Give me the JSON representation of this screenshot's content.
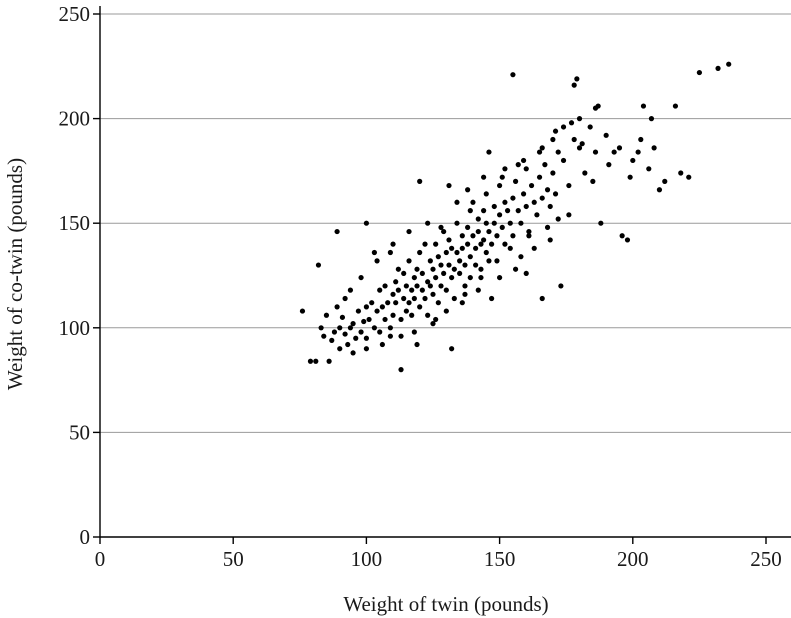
{
  "chart_data": {
    "type": "scatter",
    "title": "",
    "xlabel": "Weight of twin (pounds)",
    "ylabel": "Weight of co-twin (pounds)",
    "xlim": [
      0,
      250
    ],
    "ylim": [
      0,
      250
    ],
    "xticks": [
      "0",
      "50",
      "100",
      "150",
      "200",
      "250"
    ],
    "yticks": [
      "0",
      "50",
      "100",
      "150",
      "200",
      "250"
    ],
    "grid": "horizontal",
    "marker_color": "#000000",
    "points": [
      [
        76,
        108
      ],
      [
        79,
        84
      ],
      [
        81,
        84
      ],
      [
        82,
        130
      ],
      [
        83,
        100
      ],
      [
        84,
        96
      ],
      [
        86,
        84
      ],
      [
        87,
        94
      ],
      [
        88,
        98
      ],
      [
        89,
        146
      ],
      [
        90,
        90
      ],
      [
        90,
        100
      ],
      [
        91,
        105
      ],
      [
        92,
        114
      ],
      [
        92,
        97
      ],
      [
        93,
        92
      ],
      [
        94,
        100
      ],
      [
        95,
        102
      ],
      [
        96,
        95
      ],
      [
        97,
        108
      ],
      [
        98,
        98
      ],
      [
        99,
        103
      ],
      [
        100,
        150
      ],
      [
        100,
        110
      ],
      [
        100,
        95
      ],
      [
        101,
        104
      ],
      [
        102,
        112
      ],
      [
        103,
        100
      ],
      [
        104,
        108
      ],
      [
        105,
        118
      ],
      [
        105,
        98
      ],
      [
        106,
        110
      ],
      [
        107,
        120
      ],
      [
        107,
        104
      ],
      [
        108,
        112
      ],
      [
        109,
        136
      ],
      [
        109,
        100
      ],
      [
        110,
        116
      ],
      [
        110,
        106
      ],
      [
        111,
        122
      ],
      [
        111,
        112
      ],
      [
        112,
        128
      ],
      [
        112,
        118
      ],
      [
        113,
        104
      ],
      [
        113,
        80
      ],
      [
        114,
        114
      ],
      [
        114,
        126
      ],
      [
        115,
        120
      ],
      [
        115,
        108
      ],
      [
        116,
        112
      ],
      [
        116,
        132
      ],
      [
        117,
        118
      ],
      [
        117,
        106
      ],
      [
        118,
        124
      ],
      [
        118,
        114
      ],
      [
        119,
        128
      ],
      [
        119,
        120
      ],
      [
        120,
        110
      ],
      [
        120,
        136
      ],
      [
        121,
        118
      ],
      [
        121,
        126
      ],
      [
        122,
        140
      ],
      [
        122,
        114
      ],
      [
        123,
        122
      ],
      [
        123,
        106
      ],
      [
        124,
        132
      ],
      [
        124,
        120
      ],
      [
        125,
        128
      ],
      [
        125,
        116
      ],
      [
        126,
        140
      ],
      [
        126,
        124
      ],
      [
        127,
        134
      ],
      [
        127,
        112
      ],
      [
        128,
        130
      ],
      [
        128,
        120
      ],
      [
        129,
        146
      ],
      [
        129,
        126
      ],
      [
        130,
        136
      ],
      [
        130,
        118
      ],
      [
        131,
        142
      ],
      [
        131,
        130
      ],
      [
        132,
        124
      ],
      [
        132,
        138
      ],
      [
        133,
        128
      ],
      [
        133,
        114
      ],
      [
        134,
        150
      ],
      [
        134,
        136
      ],
      [
        135,
        132
      ],
      [
        135,
        126
      ],
      [
        136,
        144
      ],
      [
        136,
        138
      ],
      [
        137,
        130
      ],
      [
        137,
        120
      ],
      [
        138,
        148
      ],
      [
        138,
        140
      ],
      [
        139,
        134
      ],
      [
        139,
        124
      ],
      [
        140,
        160
      ],
      [
        140,
        144
      ],
      [
        141,
        138
      ],
      [
        141,
        130
      ],
      [
        142,
        152
      ],
      [
        142,
        146
      ],
      [
        143,
        140
      ],
      [
        143,
        128
      ],
      [
        144,
        156
      ],
      [
        144,
        142
      ],
      [
        145,
        136
      ],
      [
        145,
        150
      ],
      [
        146,
        146
      ],
      [
        146,
        132
      ],
      [
        147,
        140
      ],
      [
        148,
        158
      ],
      [
        148,
        150
      ],
      [
        149,
        144
      ],
      [
        150,
        168
      ],
      [
        150,
        154
      ],
      [
        151,
        148
      ],
      [
        152,
        160
      ],
      [
        152,
        140
      ],
      [
        153,
        156
      ],
      [
        154,
        150
      ],
      [
        155,
        162
      ],
      [
        155,
        144
      ],
      [
        156,
        170
      ],
      [
        157,
        156
      ],
      [
        158,
        150
      ],
      [
        159,
        164
      ],
      [
        160,
        176
      ],
      [
        160,
        158
      ],
      [
        161,
        146
      ],
      [
        162,
        168
      ],
      [
        163,
        160
      ],
      [
        164,
        154
      ],
      [
        165,
        172
      ],
      [
        166,
        162
      ],
      [
        167,
        178
      ],
      [
        168,
        166
      ],
      [
        169,
        158
      ],
      [
        170,
        174
      ],
      [
        171,
        164
      ],
      [
        172,
        184
      ],
      [
        174,
        180
      ],
      [
        176,
        168
      ],
      [
        178,
        190
      ],
      [
        180,
        186
      ],
      [
        182,
        174
      ],
      [
        184,
        196
      ],
      [
        186,
        184
      ],
      [
        188,
        150
      ],
      [
        190,
        192
      ],
      [
        195,
        186
      ],
      [
        196,
        144
      ],
      [
        198,
        142
      ],
      [
        200,
        180
      ],
      [
        202,
        184
      ],
      [
        204,
        206
      ],
      [
        206,
        176
      ],
      [
        208,
        186
      ],
      [
        210,
        166
      ],
      [
        212,
        170
      ],
      [
        216,
        206
      ],
      [
        218,
        174
      ],
      [
        221,
        172
      ],
      [
        225,
        222
      ],
      [
        232,
        224
      ],
      [
        236,
        226
      ],
      [
        155,
        221
      ],
      [
        179,
        219
      ],
      [
        186,
        205
      ],
      [
        174,
        196
      ],
      [
        146,
        184
      ],
      [
        131,
        168
      ],
      [
        120,
        170
      ],
      [
        103,
        136
      ],
      [
        109,
        96
      ],
      [
        119,
        92
      ],
      [
        125,
        102
      ],
      [
        132,
        90
      ],
      [
        137,
        116
      ],
      [
        147,
        114
      ],
      [
        160,
        126
      ],
      [
        166,
        114
      ],
      [
        173,
        120
      ],
      [
        178,
        216
      ],
      [
        180,
        200
      ],
      [
        170,
        190
      ],
      [
        165,
        184
      ],
      [
        157,
        178
      ],
      [
        151,
        172
      ],
      [
        145,
        164
      ],
      [
        139,
        156
      ],
      [
        134,
        160
      ],
      [
        128,
        148
      ],
      [
        123,
        150
      ],
      [
        116,
        146
      ],
      [
        110,
        140
      ],
      [
        104,
        132
      ],
      [
        98,
        124
      ],
      [
        94,
        118
      ],
      [
        89,
        110
      ],
      [
        85,
        106
      ],
      [
        143,
        124
      ],
      [
        149,
        132
      ],
      [
        154,
        138
      ],
      [
        161,
        144
      ],
      [
        158,
        134
      ],
      [
        163,
        138
      ],
      [
        168,
        148
      ],
      [
        172,
        152
      ],
      [
        176,
        154
      ],
      [
        169,
        142
      ],
      [
        156,
        128
      ],
      [
        150,
        124
      ],
      [
        142,
        118
      ],
      [
        136,
        112
      ],
      [
        130,
        108
      ],
      [
        126,
        104
      ],
      [
        118,
        98
      ],
      [
        113,
        96
      ],
      [
        106,
        92
      ],
      [
        100,
        90
      ],
      [
        95,
        88
      ],
      [
        138,
        166
      ],
      [
        144,
        172
      ],
      [
        152,
        176
      ],
      [
        159,
        180
      ],
      [
        166,
        186
      ],
      [
        171,
        194
      ],
      [
        177,
        198
      ],
      [
        181,
        188
      ],
      [
        187,
        206
      ],
      [
        193,
        184
      ],
      [
        203,
        190
      ],
      [
        207,
        200
      ],
      [
        199,
        172
      ],
      [
        191,
        178
      ],
      [
        185,
        170
      ]
    ]
  }
}
